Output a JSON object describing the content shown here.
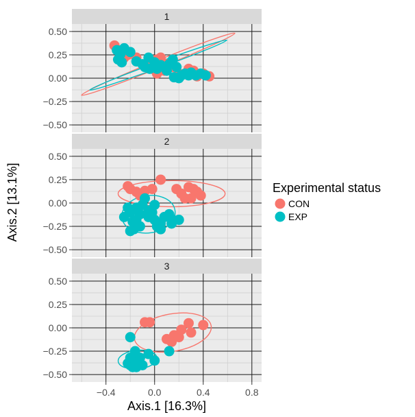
{
  "chart_data": {
    "type": "scatter",
    "xlabel": "Axis.1   [16.3%]",
    "ylabel": "Axis.2   [13.1%]",
    "xlim": [
      -0.68,
      0.88
    ],
    "ylim": [
      -0.58,
      0.58
    ],
    "x_ticks": [
      -0.4,
      0.0,
      0.4,
      0.8
    ],
    "x_tick_labels": [
      "−0.4",
      "0.0",
      "0.4",
      "0.8"
    ],
    "y_ticks": [
      0.5,
      0.25,
      0.0,
      -0.25,
      -0.5
    ],
    "y_tick_labels": [
      "0.50",
      "0.25",
      "0.00",
      "−0.25",
      "−0.50"
    ],
    "grid": true,
    "legend": {
      "title": "Experimental status",
      "placement": "right",
      "entries": [
        {
          "label": "CON",
          "color": "#F8766D"
        },
        {
          "label": "EXP",
          "color": "#00BFC4"
        }
      ]
    },
    "series_colors": {
      "CON": "#F8766D",
      "EXP": "#00BFC4"
    },
    "panels": [
      {
        "label": "1",
        "points": {
          "CON": [
            [
              -0.33,
              0.35
            ],
            [
              -0.3,
              0.3
            ],
            [
              -0.28,
              0.28
            ],
            [
              -0.25,
              0.22
            ],
            [
              -0.22,
              0.25
            ],
            [
              -0.15,
              0.22
            ],
            [
              -0.05,
              0.18
            ],
            [
              0.02,
              0.2
            ],
            [
              0.05,
              0.22
            ],
            [
              0.08,
              0.08
            ],
            [
              0.1,
              0.15
            ],
            [
              0.15,
              0.12
            ],
            [
              0.2,
              0.05
            ],
            [
              0.28,
              0.1
            ],
            [
              0.32,
              0.08
            ],
            [
              0.35,
              0.02
            ],
            [
              0.4,
              0.05
            ],
            [
              0.45,
              0.02
            ],
            [
              0.02,
              0.05
            ],
            [
              -0.02,
              0.1
            ]
          ],
          "EXP": [
            [
              -0.31,
              0.3
            ],
            [
              -0.28,
              0.26
            ],
            [
              -0.3,
              0.2
            ],
            [
              -0.27,
              0.17
            ],
            [
              -0.25,
              0.32
            ],
            [
              -0.2,
              0.28
            ],
            [
              -0.15,
              0.18
            ],
            [
              -0.1,
              0.15
            ],
            [
              -0.05,
              0.22
            ],
            [
              -0.04,
              0.1
            ],
            [
              0.0,
              0.17
            ],
            [
              0.05,
              0.14
            ],
            [
              0.08,
              0.12
            ],
            [
              0.12,
              0.15
            ],
            [
              0.15,
              0.2
            ],
            [
              0.18,
              0.12
            ],
            [
              0.2,
              0.0
            ],
            [
              0.22,
              0.03
            ],
            [
              0.25,
              0.05
            ],
            [
              0.28,
              0.03
            ],
            [
              0.3,
              0.06
            ],
            [
              0.34,
              0.03
            ],
            [
              0.38,
              0.05
            ],
            [
              0.42,
              0.03
            ],
            [
              0.1,
              0.08
            ],
            [
              0.02,
              0.1
            ],
            [
              -0.08,
              0.12
            ],
            [
              0.16,
              0.01
            ]
          ]
        },
        "ellipses": {
          "CON": {
            "cx": 0.03,
            "cy": 0.15,
            "rx": 0.68,
            "ry": 0.04,
            "angle_deg": -22
          },
          "EXP": {
            "cx": 0.03,
            "cy": 0.14,
            "rx": 0.6,
            "ry": 0.03,
            "angle_deg": -20
          }
        }
      },
      {
        "label": "2",
        "points": {
          "CON": [
            [
              -0.22,
              0.18
            ],
            [
              -0.2,
              0.15
            ],
            [
              -0.15,
              0.12
            ],
            [
              -0.12,
              0.08
            ],
            [
              -0.08,
              0.13
            ],
            [
              -0.02,
              0.15
            ],
            [
              0.05,
              0.25
            ],
            [
              0.18,
              0.15
            ],
            [
              0.22,
              0.1
            ],
            [
              0.25,
              0.05
            ],
            [
              0.28,
              0.17
            ],
            [
              0.32,
              0.15
            ],
            [
              0.35,
              0.12
            ],
            [
              0.38,
              0.08
            ],
            [
              0.3,
              0.05
            ]
          ],
          "EXP": [
            [
              -0.25,
              -0.15
            ],
            [
              -0.22,
              -0.05
            ],
            [
              -0.2,
              -0.1
            ],
            [
              -0.18,
              -0.2
            ],
            [
              -0.17,
              -0.28
            ],
            [
              -0.15,
              -0.05
            ],
            [
              -0.12,
              -0.12
            ],
            [
              -0.1,
              -0.02
            ],
            [
              -0.08,
              0.05
            ],
            [
              -0.05,
              -0.15
            ],
            [
              -0.02,
              -0.1
            ],
            [
              0.0,
              -0.18
            ],
            [
              0.02,
              -0.25
            ],
            [
              0.05,
              -0.22
            ],
            [
              0.08,
              -0.15
            ],
            [
              -0.15,
              -0.18
            ],
            [
              0.12,
              -0.12
            ],
            [
              0.15,
              -0.18
            ],
            [
              0.2,
              -0.18
            ],
            [
              -0.12,
              -0.25
            ],
            [
              -0.05,
              -0.08
            ],
            [
              0.0,
              -0.02
            ],
            [
              -0.2,
              -0.3
            ],
            [
              0.05,
              -0.28
            ],
            [
              0.14,
              -0.22
            ]
          ]
        },
        "ellipses": {
          "CON": {
            "cx": 0.14,
            "cy": 0.1,
            "rx": 0.44,
            "ry": 0.14,
            "angle_deg": 0
          },
          "EXP": {
            "cx": -0.05,
            "cy": -0.12,
            "rx": 0.22,
            "ry": 0.2,
            "angle_deg": -8
          }
        }
      },
      {
        "label": "3",
        "points": {
          "CON": [
            [
              -0.08,
              0.06
            ],
            [
              -0.04,
              0.06
            ],
            [
              0.1,
              -0.12
            ],
            [
              0.14,
              -0.15
            ],
            [
              0.16,
              -0.08
            ],
            [
              0.2,
              -0.1
            ],
            [
              0.22,
              -0.02
            ],
            [
              0.28,
              0.05
            ],
            [
              0.3,
              -0.05
            ],
            [
              0.4,
              0.03
            ]
          ],
          "EXP": [
            [
              -0.2,
              -0.1
            ],
            [
              -0.22,
              -0.38
            ],
            [
              -0.2,
              -0.4
            ],
            [
              -0.18,
              -0.35
            ],
            [
              -0.16,
              -0.25
            ],
            [
              -0.15,
              -0.42
            ],
            [
              -0.14,
              -0.38
            ],
            [
              -0.12,
              -0.32
            ],
            [
              -0.1,
              -0.4
            ],
            [
              -0.05,
              -0.28
            ],
            [
              0.0,
              -0.35
            ],
            [
              0.12,
              -0.25
            ],
            [
              -0.2,
              -0.32
            ],
            [
              -0.17,
              -0.3
            ],
            [
              -0.13,
              -0.36
            ],
            [
              -0.18,
              -0.42
            ]
          ]
        },
        "ellipses": {
          "CON": {
            "cx": 0.15,
            "cy": -0.05,
            "rx": 0.32,
            "ry": 0.2,
            "angle_deg": -10
          },
          "EXP": {
            "cx": -0.14,
            "cy": -0.34,
            "rx": 0.16,
            "ry": 0.1,
            "angle_deg": -5
          }
        }
      }
    ]
  }
}
